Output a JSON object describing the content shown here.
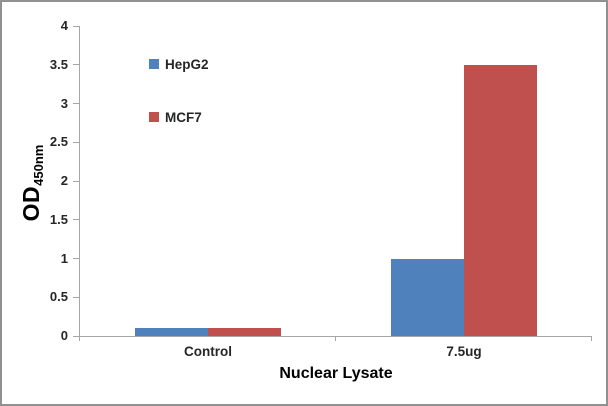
{
  "chart_data": {
    "type": "bar",
    "title": "",
    "categories": [
      "Control",
      "7.5ug"
    ],
    "series": [
      {
        "name": "HepG2",
        "color": "#4F81BD",
        "values": [
          0.1,
          1.0
        ]
      },
      {
        "name": "MCF7",
        "color": "#C0504D",
        "values": [
          0.1,
          3.5
        ]
      }
    ],
    "xlabel": "Nuclear Lysate",
    "ylabel": "OD",
    "ylabel_subscript": "450nm",
    "ylim": [
      0,
      4
    ],
    "yticks": [
      0,
      0.5,
      1,
      1.5,
      2,
      2.5,
      3,
      3.5,
      4
    ],
    "grid": false,
    "legend_position": "inside-top-left",
    "axis_color": "#a6a6a6",
    "text_color": "#262626"
  }
}
